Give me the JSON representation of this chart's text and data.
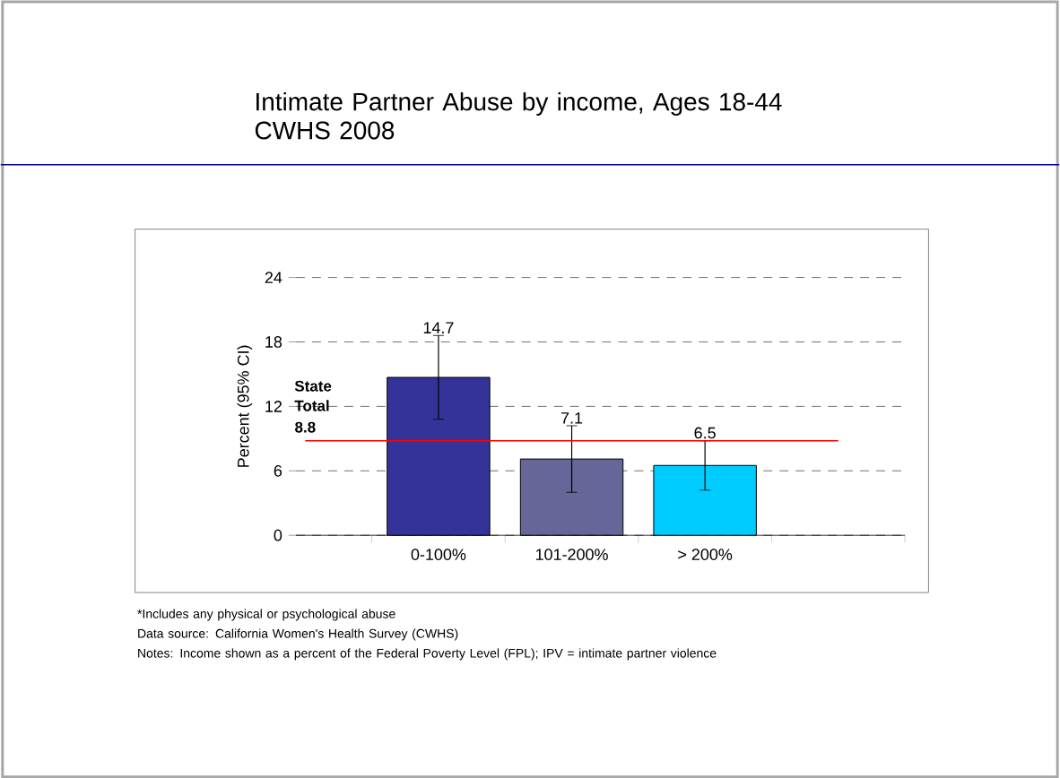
{
  "chart_data": {
    "type": "bar",
    "title": "Intimate Partner Abuse by income, Ages 18-44 CWHS 2008",
    "ylabel": "Percent (95% CI)",
    "categories": [
      null,
      "0-100%",
      "101-200%",
      "> 200%",
      null
    ],
    "values": [
      null,
      14.7,
      7.1,
      6.5,
      null
    ],
    "colors": [
      "#333399",
      "#333399",
      "#666699",
      "#00ccff",
      "#00ccff"
    ],
    "errors": [
      null,
      [
        10.8,
        18.6
      ],
      [
        4.0,
        10.2
      ],
      [
        4.2,
        8.8
      ],
      null
    ],
    "value_labels": [
      null,
      "14.7",
      "7.1",
      "6.5",
      null
    ],
    "ylim": [
      0,
      24
    ],
    "yticks": [
      0,
      6,
      12,
      18,
      24
    ],
    "grid": "y",
    "ref_lines": [
      {
        "axis": "y",
        "value": 8.8,
        "label": "State Total",
        "color": "#ff0000"
      }
    ],
    "annotations": [
      {
        "text": "8.8",
        "y": 8.8
      },
      "*Includes any physical or psychological abuse",
      "Data source: California Women's Health Survey (CWHS)",
      "Notes: Income shown as a percent of the Federal Poverty Level (FPL); IPV = intimate partner violence"
    ]
  }
}
